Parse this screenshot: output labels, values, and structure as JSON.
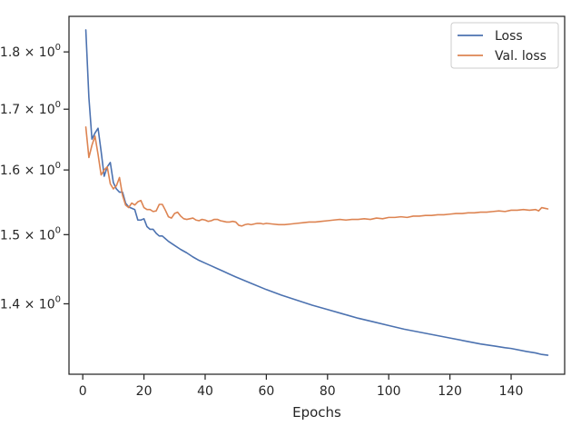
{
  "chart_data": {
    "type": "line",
    "title": "",
    "xlabel": "Epochs",
    "ylabel": "",
    "yscale": "log",
    "xlim": [
      -4.5,
      157.5
    ],
    "ylim": [
      1.305,
      1.865
    ],
    "grid": false,
    "legend_position": "top-right",
    "xticks": [
      0,
      20,
      40,
      60,
      80,
      100,
      120,
      140
    ],
    "yticks": [
      {
        "value": 1.4,
        "mantissa": "1.4",
        "exponent": "0"
      },
      {
        "value": 1.5,
        "mantissa": "1.5",
        "exponent": "0"
      },
      {
        "value": 1.6,
        "mantissa": "1.6",
        "exponent": "0"
      },
      {
        "value": 1.7,
        "mantissa": "1.7",
        "exponent": "0"
      },
      {
        "value": 1.8,
        "mantissa": "1.8",
        "exponent": "0"
      }
    ],
    "ytick_base_label": "× 10",
    "series": [
      {
        "name": "Loss",
        "color": "#4c72b0",
        "x": [
          1,
          2,
          3,
          4,
          5,
          6,
          7,
          8,
          9,
          10,
          11,
          12,
          13,
          14,
          15,
          16,
          17,
          18,
          19,
          20,
          21,
          22,
          23,
          24,
          25,
          26,
          27,
          28,
          29,
          30,
          32,
          34,
          36,
          38,
          40,
          42,
          44,
          46,
          48,
          50,
          55,
          60,
          65,
          70,
          75,
          80,
          85,
          90,
          95,
          100,
          105,
          110,
          115,
          120,
          125,
          130,
          135,
          138,
          140,
          145,
          148,
          150,
          152
        ],
        "values": [
          1.84,
          1.72,
          1.65,
          1.66,
          1.668,
          1.63,
          1.59,
          1.605,
          1.612,
          1.58,
          1.57,
          1.565,
          1.565,
          1.548,
          1.542,
          1.54,
          1.538,
          1.522,
          1.522,
          1.524,
          1.512,
          1.508,
          1.508,
          1.502,
          1.498,
          1.498,
          1.494,
          1.49,
          1.487,
          1.484,
          1.478,
          1.473,
          1.467,
          1.462,
          1.458,
          1.454,
          1.45,
          1.446,
          1.442,
          1.438,
          1.429,
          1.42,
          1.412,
          1.405,
          1.398,
          1.392,
          1.386,
          1.38,
          1.375,
          1.37,
          1.365,
          1.361,
          1.357,
          1.353,
          1.349,
          1.345,
          1.342,
          1.34,
          1.339,
          1.335,
          1.333,
          1.331,
          1.33
        ]
      },
      {
        "name": "Val. loss",
        "color": "#dd8452",
        "x": [
          1,
          2,
          3,
          4,
          5,
          6,
          7,
          8,
          9,
          10,
          11,
          12,
          13,
          14,
          15,
          16,
          17,
          18,
          19,
          20,
          21,
          22,
          23,
          24,
          25,
          26,
          27,
          28,
          29,
          30,
          31,
          32,
          33,
          34,
          35,
          36,
          37,
          38,
          39,
          40,
          41,
          42,
          43,
          44,
          45,
          46,
          47,
          48,
          49,
          50,
          51,
          52,
          53,
          54,
          55,
          56,
          57,
          58,
          59,
          60,
          62,
          64,
          66,
          68,
          70,
          72,
          74,
          76,
          78,
          80,
          82,
          84,
          86,
          88,
          90,
          92,
          94,
          96,
          98,
          100,
          102,
          104,
          106,
          108,
          110,
          112,
          114,
          116,
          118,
          120,
          122,
          124,
          126,
          128,
          130,
          132,
          134,
          136,
          138,
          140,
          142,
          144,
          146,
          148,
          149,
          150,
          151,
          152
        ],
        "values": [
          1.67,
          1.62,
          1.64,
          1.655,
          1.625,
          1.592,
          1.6,
          1.605,
          1.578,
          1.57,
          1.575,
          1.588,
          1.56,
          1.545,
          1.541,
          1.548,
          1.545,
          1.55,
          1.552,
          1.541,
          1.538,
          1.538,
          1.535,
          1.536,
          1.546,
          1.546,
          1.537,
          1.527,
          1.525,
          1.532,
          1.534,
          1.528,
          1.524,
          1.523,
          1.524,
          1.525,
          1.522,
          1.521,
          1.523,
          1.522,
          1.52,
          1.521,
          1.523,
          1.523,
          1.521,
          1.52,
          1.519,
          1.519,
          1.52,
          1.519,
          1.514,
          1.513,
          1.515,
          1.516,
          1.515,
          1.516,
          1.517,
          1.517,
          1.516,
          1.517,
          1.516,
          1.515,
          1.515,
          1.516,
          1.517,
          1.518,
          1.519,
          1.519,
          1.52,
          1.521,
          1.522,
          1.523,
          1.522,
          1.523,
          1.523,
          1.524,
          1.523,
          1.525,
          1.524,
          1.526,
          1.526,
          1.527,
          1.526,
          1.528,
          1.528,
          1.529,
          1.529,
          1.53,
          1.53,
          1.531,
          1.532,
          1.532,
          1.533,
          1.533,
          1.534,
          1.534,
          1.535,
          1.536,
          1.535,
          1.537,
          1.537,
          1.538,
          1.537,
          1.538,
          1.536,
          1.541,
          1.54,
          1.539
        ]
      }
    ]
  }
}
